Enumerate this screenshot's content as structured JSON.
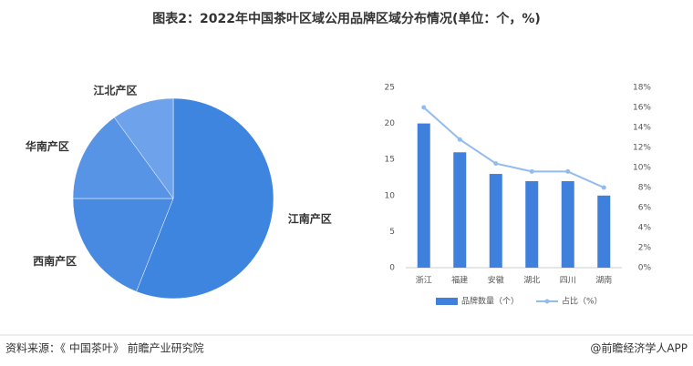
{
  "title": "图表2：2022年中国茶叶区域公用品牌区域分布情况(单位：个，%)",
  "source": "资料来源：《 中国茶叶》 前瞻产业研究院",
  "credit": "@前瞻经济学人APP",
  "chart_data": [
    {
      "type": "pie",
      "categories": [
        "江南产区",
        "西南产区",
        "华南产区",
        "江北产区"
      ],
      "values": [
        56,
        19,
        15,
        10
      ],
      "colors": [
        "#3e85e0",
        "#4889e2",
        "#5894e6",
        "#6ea2ea"
      ]
    },
    {
      "type": "bar",
      "categories": [
        "浙江",
        "福建",
        "安徽",
        "湖北",
        "四川",
        "湖南"
      ],
      "series": [
        {
          "name": "品牌数量（个）",
          "color": "#3f80dc",
          "values": [
            20,
            16,
            13,
            12,
            12,
            10
          ]
        },
        {
          "name": "占比（%）",
          "color": "#92bbee",
          "axis": "y2",
          "type": "line",
          "values": [
            16,
            12.8,
            10.4,
            9.6,
            9.6,
            8
          ]
        }
      ],
      "ylim": [
        0,
        25
      ],
      "yticks": [
        0,
        5,
        10,
        15,
        20,
        25
      ],
      "y2lim": [
        0,
        18
      ],
      "y2ticks": [
        {
          "value": 0,
          "label": "0%"
        },
        {
          "value": 2,
          "label": "2%"
        },
        {
          "value": 4,
          "label": "4%"
        },
        {
          "value": 6,
          "label": "6%"
        },
        {
          "value": 8,
          "label": "8%"
        },
        {
          "value": 10,
          "label": "10%"
        },
        {
          "value": 12,
          "label": "12%"
        },
        {
          "value": 14,
          "label": "14%"
        },
        {
          "value": 16,
          "label": "16%"
        },
        {
          "value": 18,
          "label": "18%"
        }
      ],
      "legend": "bottom"
    }
  ]
}
